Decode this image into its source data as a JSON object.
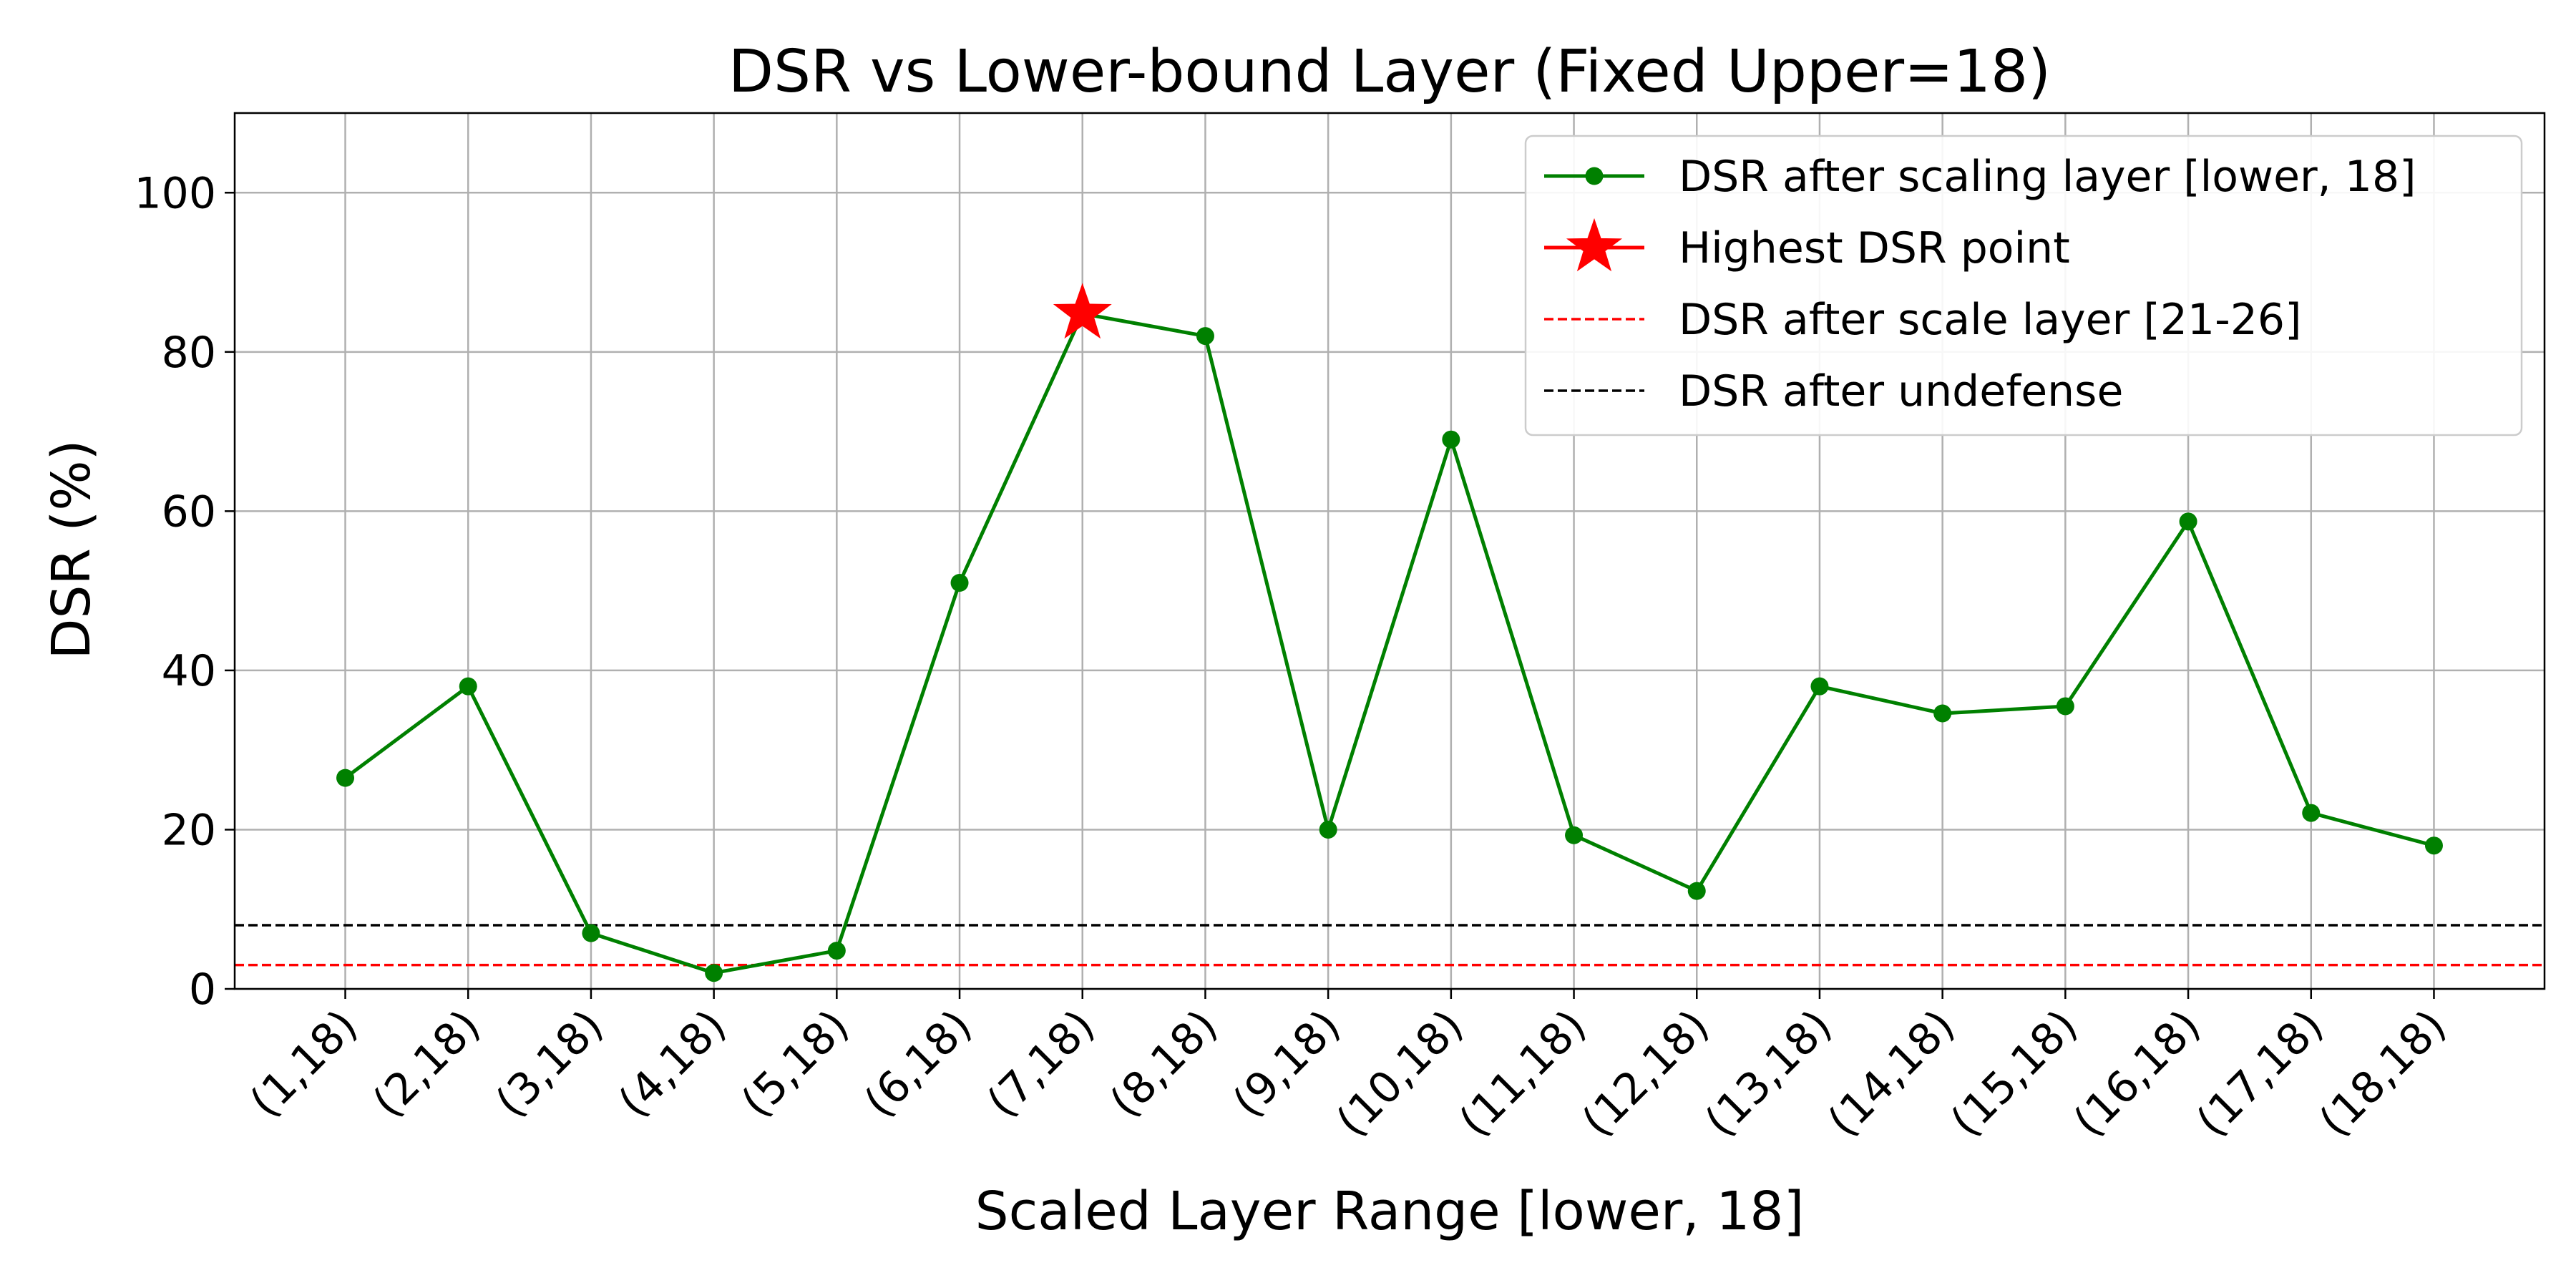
{
  "chart_data": {
    "type": "line",
    "title": "DSR vs Lower-bound Layer (Fixed Upper=18)",
    "xlabel": "Scaled Layer Range [lower, 18]",
    "ylabel": "DSR (%)",
    "categories": [
      "(1,18)",
      "(2,18)",
      "(3,18)",
      "(4,18)",
      "(5,18)",
      "(6,18)",
      "(7,18)",
      "(8,18)",
      "(9,18)",
      "(10,18)",
      "(11,18)",
      "(12,18)",
      "(13,18)",
      "(14,18)",
      "(15,18)",
      "(16,18)",
      "(17,18)",
      "(18,18)"
    ],
    "ylim": [
      0,
      110
    ],
    "yticks": [
      0,
      20,
      40,
      60,
      80,
      100
    ],
    "grid": true,
    "legend_position": "top-right",
    "series": [
      {
        "name": "DSR after scaling layer [lower, 18]",
        "color": "#008000",
        "marker": "circle",
        "values": [
          26.5,
          38.0,
          7.0,
          2.0,
          4.8,
          51.0,
          84.8,
          82.0,
          20.0,
          69.0,
          19.3,
          12.3,
          38.0,
          34.6,
          35.5,
          58.7,
          22.1,
          18.0
        ]
      }
    ],
    "highlight": {
      "name": "Highest DSR point",
      "category": "(7,18)",
      "value": 84.8,
      "color": "#ff0000",
      "marker": "star"
    },
    "reference_lines": [
      {
        "name": "DSR after scale layer [21-26]",
        "value": 3.0,
        "color": "#ff0000",
        "style": "dashed"
      },
      {
        "name": "DSR after undefense",
        "value": 8.0,
        "color": "#000000",
        "style": "dashed"
      }
    ],
    "highlight_tick_color": "#ff0000"
  }
}
